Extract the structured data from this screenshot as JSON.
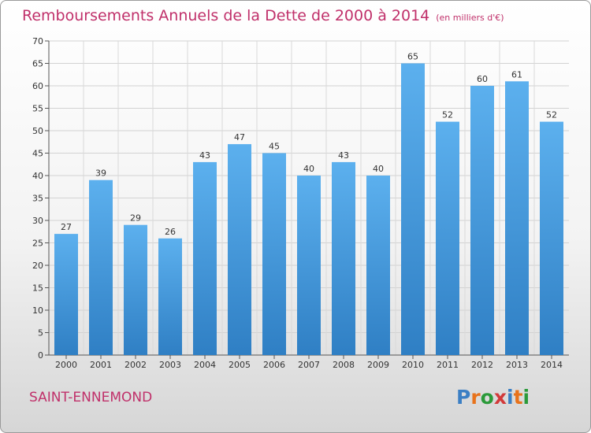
{
  "chart_data": {
    "type": "bar",
    "title": "Remboursements Annuels de la Dette de 2000 à 2014",
    "unit_note": "(en milliers d'€)",
    "categories": [
      "2000",
      "2001",
      "2002",
      "2003",
      "2004",
      "2005",
      "2006",
      "2007",
      "2008",
      "2009",
      "2010",
      "2011",
      "2012",
      "2013",
      "2014"
    ],
    "values": [
      27,
      39,
      29,
      26,
      43,
      47,
      45,
      40,
      43,
      40,
      65,
      52,
      60,
      61,
      52
    ],
    "ylim": [
      0,
      70
    ],
    "yticks": [
      0,
      5,
      10,
      15,
      20,
      25,
      30,
      35,
      40,
      45,
      50,
      55,
      60,
      65,
      70
    ],
    "grid": true,
    "bar_color": "#3d8fd6"
  },
  "commune": "SAINT-ENNEMOND",
  "logo": {
    "text": "Proxiti",
    "letter_colors": [
      "#3b7fc4",
      "#e8731c",
      "#2b9a3a",
      "#d23a3a",
      "#3b7fc4",
      "#e8731c",
      "#2b9a3a"
    ]
  }
}
